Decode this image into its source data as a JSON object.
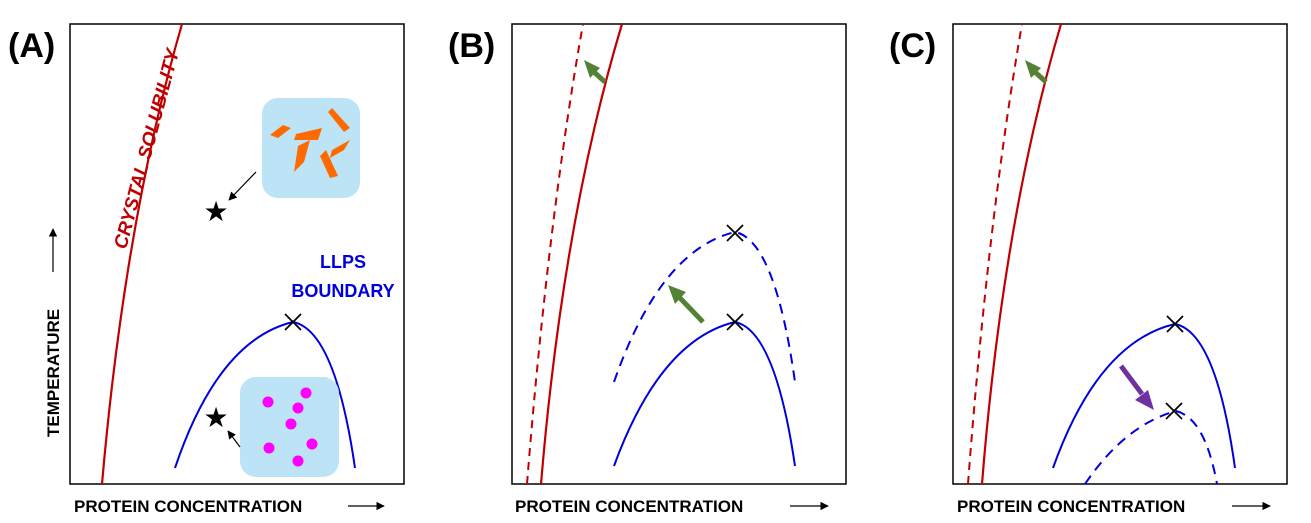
{
  "panels": [
    {
      "label": "(A)",
      "xlabel": "PROTEIN CONCENTRATION",
      "ylabel": "TEMPERATURE"
    },
    {
      "label": "(B)",
      "xlabel": "PROTEIN CONCENTRATION"
    },
    {
      "label": "(C)",
      "xlabel": "PROTEIN CONCENTRATION"
    }
  ],
  "annotations": {
    "crystal_solubility": "CRYSTAL SOLUBILITY",
    "llps_line1": "LLPS",
    "llps_line2": "BOUNDARY"
  },
  "colors": {
    "crystal": "#c00000",
    "llps": "#0000dd",
    "green_arrow": "#548235",
    "purple_arrow": "#7030a0",
    "inset_bg": "#bde3f7",
    "crystals": "#ff6a00",
    "droplets": "#ff00ff"
  }
}
